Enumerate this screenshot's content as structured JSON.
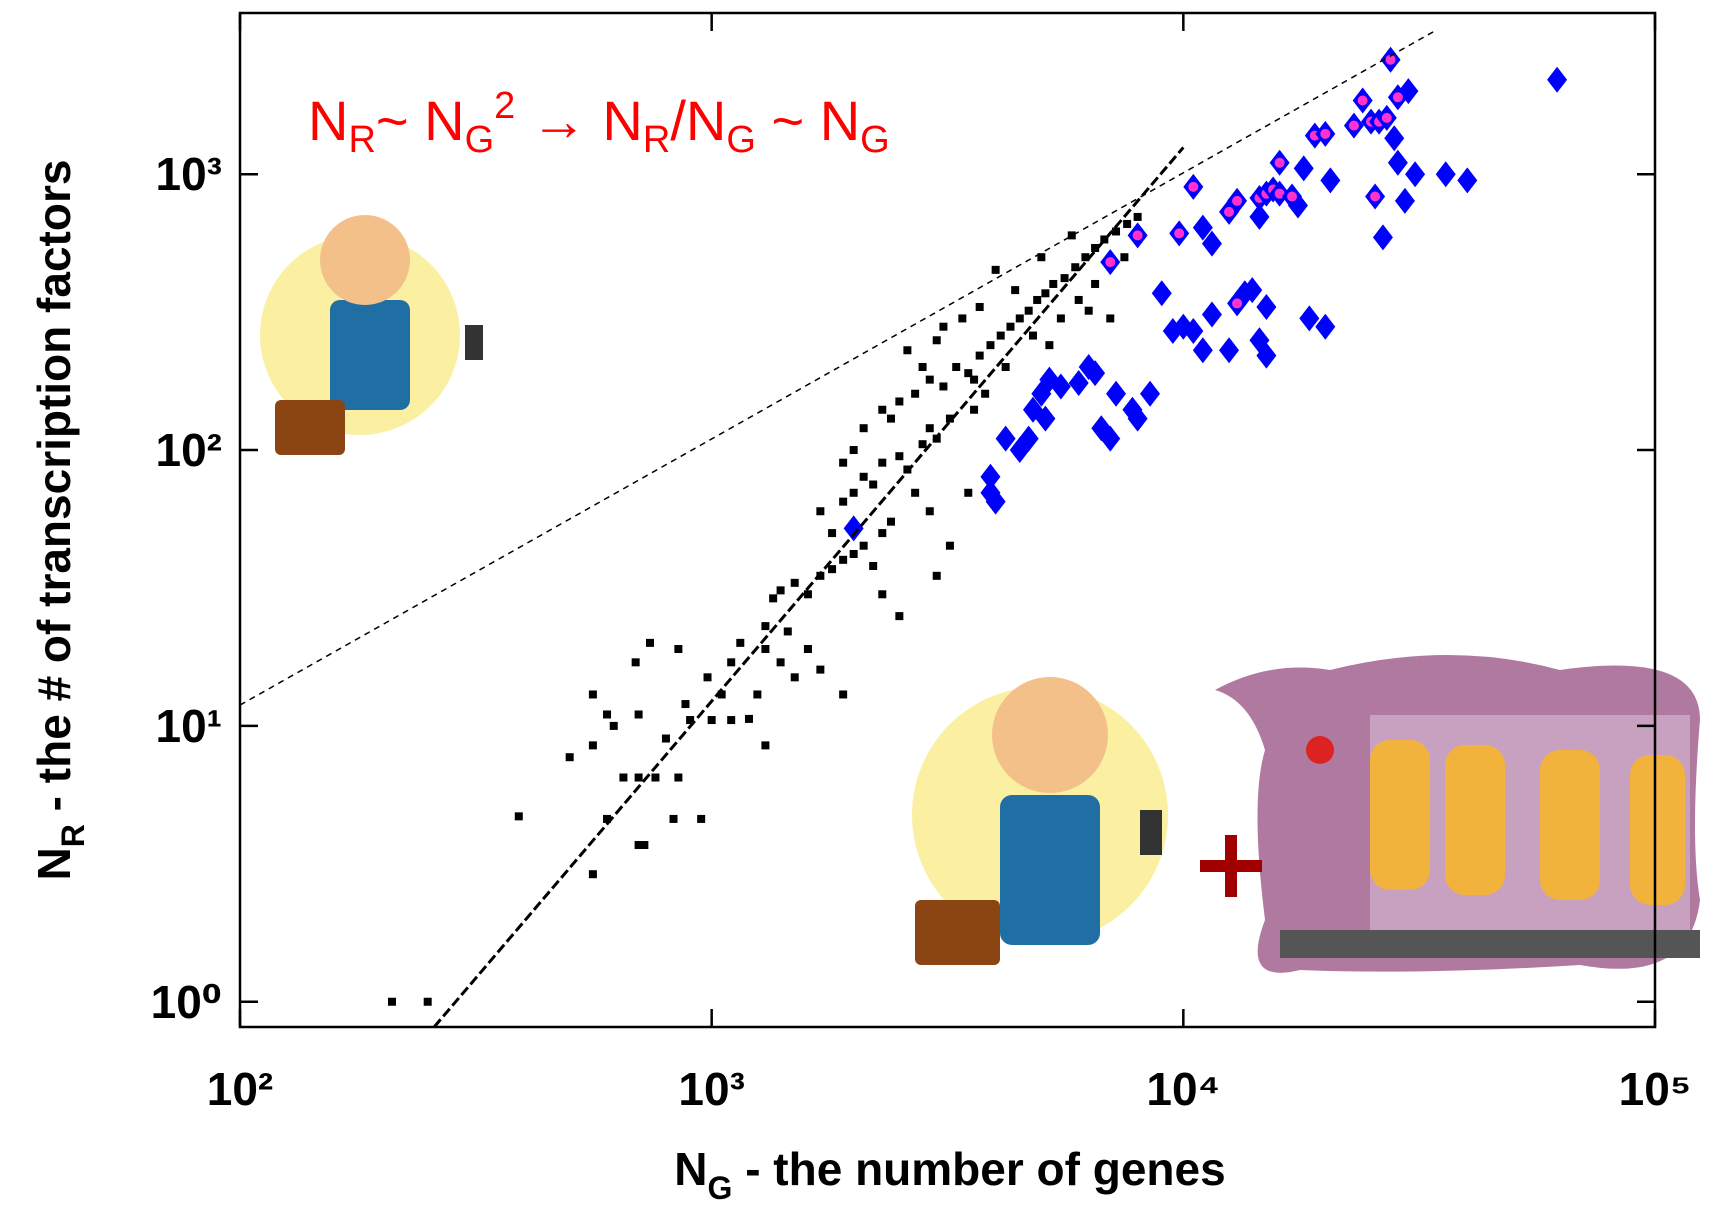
{
  "chart_data": {
    "type": "scatter",
    "annotation": [
      "N",
      "R",
      "~ N",
      "G",
      "2",
      " → N",
      "R",
      "/N",
      "G",
      " ~ N",
      "G"
    ],
    "xlabel": {
      "main": "N",
      "sub": "G",
      "rest": " - the number of genes"
    },
    "ylabel": {
      "main": "N",
      "sub": "R",
      "rest": " - the # of transcription factors"
    },
    "log_x": true,
    "log_y": true,
    "xlim": [
      100,
      100000
    ],
    "ylim": [
      0.81,
      3840
    ],
    "xticks": [
      {
        "value": 100,
        "label": "10²"
      },
      {
        "value": 1000,
        "label": "10³"
      },
      {
        "value": 10000,
        "label": "10⁴"
      },
      {
        "value": 100000,
        "label": "10⁵"
      }
    ],
    "yticks": [
      {
        "value": 1,
        "label": "10⁰"
      },
      {
        "value": 10,
        "label": "10¹"
      },
      {
        "value": 100,
        "label": "10²"
      },
      {
        "value": 1000,
        "label": "10³"
      }
    ],
    "series": [
      {
        "marker": "square",
        "color": "#000000",
        "x": [
          210,
          250,
          390,
          560,
          700,
          720,
          650,
          700,
          760,
          850,
          600,
          830,
          950,
          500,
          560,
          620,
          700,
          800,
          900,
          1000,
          1100,
          1200,
          880,
          980,
          1050,
          1250,
          1300,
          850,
          740,
          560,
          600,
          690,
          1100,
          1150,
          1300,
          1400,
          1500,
          1600,
          1700,
          1900,
          1450,
          1300,
          1350,
          1400,
          1500,
          1600,
          1700,
          1800,
          1900,
          2000,
          2100,
          2200,
          2300,
          2400,
          1800,
          1700,
          1900,
          2000,
          2100,
          2200,
          2300,
          2500,
          2600,
          2700,
          2800,
          2900,
          3000,
          2400,
          2000,
          1900,
          2100,
          2300,
          2500,
          2700,
          2900,
          3100,
          3300,
          3500,
          3700,
          3900,
          4100,
          4300,
          4500,
          4700,
          4900,
          5100,
          5300,
          5600,
          5900,
          6200,
          6500,
          6800,
          7200,
          7600,
          8000,
          3000,
          3400,
          3600,
          3200,
          2800,
          4000,
          4400,
          4800,
          5200,
          5500,
          6000,
          6500,
          7000,
          7500,
          3800,
          3600,
          4200,
          2600,
          3100,
          3700,
          5000,
          5800,
          6300,
          2900,
          3200,
          3500,
          2300,
          2500,
          3000
        ],
        "values": [
          1,
          1,
          4.7,
          2.9,
          3.7,
          3.7,
          6.5,
          6.5,
          6.5,
          6.5,
          4.6,
          4.6,
          4.6,
          7.7,
          8.5,
          10,
          11,
          9,
          10.5,
          10.5,
          10.5,
          10.6,
          12,
          15,
          13,
          13,
          8.5,
          19,
          20,
          13,
          11,
          17,
          17,
          20,
          19,
          17,
          15,
          19,
          16,
          13,
          22,
          23,
          29,
          31,
          33,
          30,
          35,
          37,
          40,
          42,
          45,
          38,
          50,
          55,
          50,
          60,
          65,
          70,
          80,
          75,
          90,
          95,
          85,
          70,
          105,
          120,
          110,
          130,
          100,
          90,
          120,
          140,
          150,
          160,
          180,
          170,
          200,
          190,
          220,
          240,
          260,
          280,
          300,
          320,
          350,
          370,
          400,
          420,
          460,
          500,
          540,
          580,
          620,
          660,
          700,
          250,
          300,
          140,
          130,
          200,
          450,
          380,
          260,
          240,
          300,
          350,
          400,
          300,
          500,
          160,
          180,
          200,
          230,
          280,
          330,
          500,
          600,
          320,
          60,
          45,
          70,
          30,
          25,
          35
        ]
      },
      {
        "marker": "diamond",
        "color": "#0000ff",
        "x": [
          2000,
          3900,
          3900,
          4000,
          4200,
          4500,
          4700,
          4800,
          5000,
          5100,
          5200,
          5500,
          6000,
          6300,
          6500,
          6700,
          7000,
          7200,
          7800,
          8000,
          8500,
          9000,
          9500,
          10000,
          10500,
          11000,
          11500,
          12500,
          13500,
          14000,
          14500,
          15000,
          15000,
          18500,
          20000,
          11000,
          11500,
          18000,
          20500,
          28000,
          28500,
          29500,
          30000,
          26500,
          31000,
          36000,
          40000,
          62000,
          14500,
          17500
        ],
        "values": [
          52,
          70,
          80,
          65,
          110,
          100,
          110,
          140,
          160,
          130,
          180,
          170,
          175,
          200,
          190,
          120,
          110,
          160,
          140,
          130,
          160,
          370,
          270,
          280,
          270,
          230,
          310,
          230,
          370,
          380,
          250,
          220,
          330,
          300,
          280,
          640,
          560,
          1050,
          950,
          1350,
          1100,
          800,
          2000,
          590,
          1000,
          1000,
          950,
          2200,
          700,
          770
        ]
      },
      {
        "marker": "diamond",
        "color": "#0000ff",
        "center_color": "#ff33cc",
        "x": [
          7000,
          8000,
          9800,
          10500,
          13000,
          14500,
          15000,
          15500,
          16000,
          17000,
          19000,
          20000,
          24000,
          23000,
          25000,
          26000,
          27000,
          27500,
          28500,
          25500,
          13000,
          12500,
          16000
        ],
        "values": [
          480,
          600,
          610,
          900,
          800,
          820,
          850,
          880,
          850,
          830,
          1380,
          1400,
          1850,
          1500,
          1550,
          1550,
          1600,
          2600,
          1900,
          830,
          340,
          730,
          1100
        ]
      },
      {
        "marker": "line",
        "color": "#000000",
        "dash": "6 5",
        "width": 1.5,
        "x": [
          100,
          34600
        ],
        "values": [
          11.9,
          3350
        ]
      },
      {
        "marker": "line",
        "color": "#000000",
        "dash": "10 4",
        "width": 3,
        "x": [
          258,
          10000
        ],
        "values": [
          0.81,
          1250
        ]
      }
    ]
  }
}
